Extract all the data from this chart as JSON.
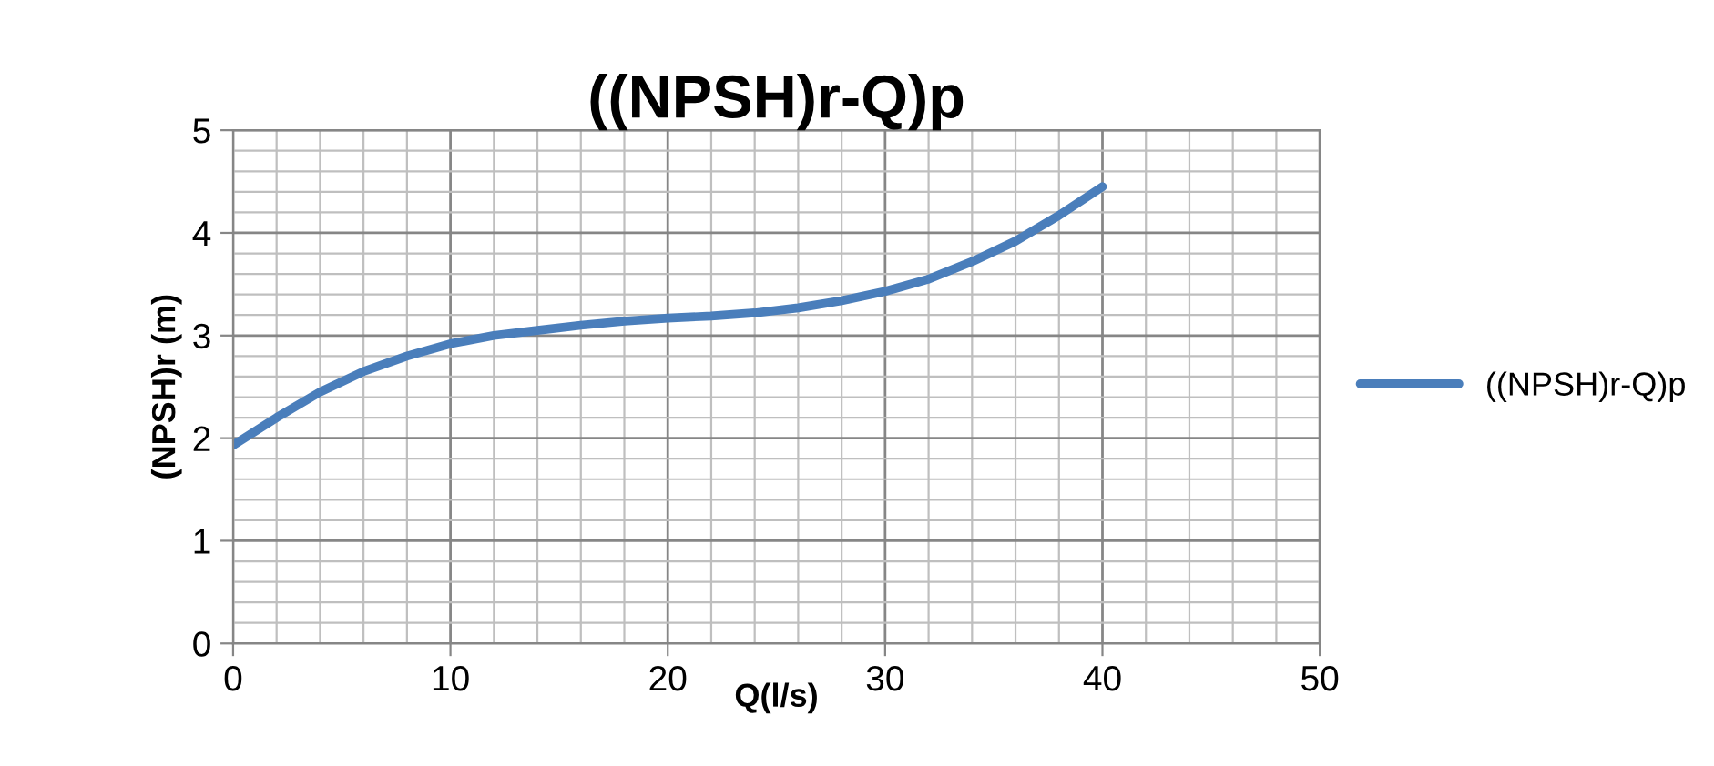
{
  "chart_data": {
    "type": "line",
    "title": "((NPSH)r-Q)p",
    "xlabel": "Q(l/s)",
    "ylabel": "(NPSH)r (m)",
    "x": [
      0,
      2,
      4,
      6,
      8,
      10,
      12,
      14,
      16,
      18,
      20,
      22,
      24,
      26,
      28,
      30,
      32,
      34,
      36,
      38,
      40
    ],
    "series": [
      {
        "name": "((NPSH)r-Q)p",
        "color": "#4a7ebb",
        "values": [
          1.93,
          2.2,
          2.45,
          2.65,
          2.8,
          2.92,
          3.0,
          3.05,
          3.1,
          3.14,
          3.17,
          3.19,
          3.22,
          3.27,
          3.34,
          3.43,
          3.55,
          3.72,
          3.92,
          4.17,
          4.45
        ]
      }
    ],
    "xlim": [
      0,
      50
    ],
    "xticks": [
      0,
      10,
      20,
      30,
      40,
      50
    ],
    "ylim": [
      0,
      5
    ],
    "yticks": [
      0,
      1,
      2,
      3,
      4,
      5
    ],
    "grid": true,
    "legend": "right",
    "marker": "none",
    "line_style": "solid"
  }
}
